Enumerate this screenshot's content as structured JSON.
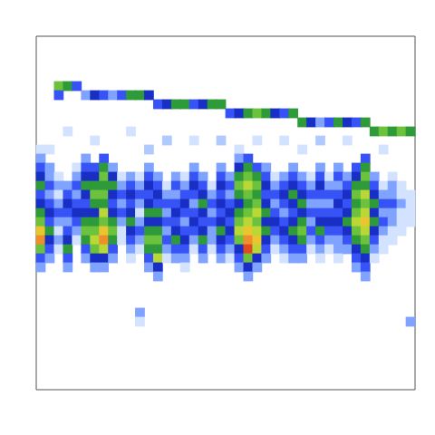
{
  "chart_data": {
    "type": "heatmap",
    "tick_labels": false,
    "grid": false,
    "xlim": [
      0,
      42
    ],
    "ylim": [
      0,
      39
    ],
    "zlim": [
      0,
      10
    ],
    "cells": [
      {
        "x": 2,
        "y": 5,
        "values": [
          6,
          3
        ]
      },
      {
        "x": 3,
        "y": 5,
        "values": [
          5
        ]
      },
      {
        "x": 4,
        "y": 5,
        "values": [
          3
        ]
      },
      {
        "x": 5,
        "y": 6,
        "values": [
          2
        ]
      },
      {
        "x": 6,
        "y": 6,
        "values": [
          4
        ]
      },
      {
        "x": 7,
        "y": 6,
        "values": [
          3
        ]
      },
      {
        "x": 8,
        "y": 6,
        "values": [
          2
        ]
      },
      {
        "x": 9,
        "y": 6,
        "values": [
          3
        ]
      },
      {
        "x": 10,
        "y": 6,
        "values": [
          5
        ]
      },
      {
        "x": 11,
        "y": 6,
        "values": [
          5
        ]
      },
      {
        "x": 12,
        "y": 6,
        "values": [
          4
        ]
      },
      {
        "x": 13,
        "y": 7,
        "values": [
          3
        ]
      },
      {
        "x": 14,
        "y": 7,
        "values": [
          4
        ]
      },
      {
        "x": 15,
        "y": 7,
        "values": [
          5
        ]
      },
      {
        "x": 16,
        "y": 7,
        "values": [
          5
        ]
      },
      {
        "x": 17,
        "y": 7,
        "values": [
          3
        ]
      },
      {
        "x": 18,
        "y": 7,
        "values": [
          4
        ]
      },
      {
        "x": 19,
        "y": 7,
        "values": [
          5
        ]
      },
      {
        "x": 20,
        "y": 7,
        "values": [
          5
        ]
      },
      {
        "x": 21,
        "y": 8,
        "values": [
          3
        ]
      },
      {
        "x": 22,
        "y": 8,
        "values": [
          4
        ]
      },
      {
        "x": 23,
        "y": 8,
        "values": [
          5
        ]
      },
      {
        "x": 24,
        "y": 8,
        "values": [
          6
        ]
      },
      {
        "x": 25,
        "y": 8,
        "values": [
          5
        ]
      },
      {
        "x": 26,
        "y": 8,
        "values": [
          4
        ]
      },
      {
        "x": 27,
        "y": 8,
        "values": [
          3
        ]
      },
      {
        "x": 28,
        "y": 8,
        "values": [
          5
        ]
      },
      {
        "x": 29,
        "y": 9,
        "values": [
          5
        ]
      },
      {
        "x": 30,
        "y": 9,
        "values": [
          4
        ]
      },
      {
        "x": 31,
        "y": 9,
        "values": [
          2
        ]
      },
      {
        "x": 32,
        "y": 9,
        "values": [
          3
        ]
      },
      {
        "x": 33,
        "y": 9,
        "values": [
          5
        ]
      },
      {
        "x": 34,
        "y": 9,
        "values": [
          4
        ]
      },
      {
        "x": 35,
        "y": 9,
        "values": [
          3
        ]
      },
      {
        "x": 36,
        "y": 9,
        "values": [
          5
        ]
      },
      {
        "x": 37,
        "y": 10,
        "values": [
          5
        ]
      },
      {
        "x": 38,
        "y": 10,
        "values": [
          6
        ]
      },
      {
        "x": 39,
        "y": 10,
        "values": [
          5
        ]
      },
      {
        "x": 40,
        "y": 10,
        "values": [
          6
        ]
      },
      {
        "x": 41,
        "y": 10,
        "values": [
          5
        ]
      },
      {
        "x": 0,
        "y": 12,
        "values": [
          1
        ]
      },
      {
        "x": 3,
        "y": 10,
        "values": [
          1
        ]
      },
      {
        "x": 6,
        "y": 11,
        "values": [
          1
        ]
      },
      {
        "x": 10,
        "y": 10,
        "values": [
          1
        ]
      },
      {
        "x": 14,
        "y": 11,
        "values": [
          1.5
        ]
      },
      {
        "x": 17,
        "y": 11,
        "values": [
          1
        ]
      },
      {
        "x": 20,
        "y": 11,
        "values": [
          1.5
        ]
      },
      {
        "x": 24,
        "y": 11,
        "values": [
          1
        ]
      },
      {
        "x": 27,
        "y": 11,
        "values": [
          1
        ]
      },
      {
        "x": 31,
        "y": 11,
        "values": [
          1.5
        ]
      },
      {
        "x": 34,
        "y": 11,
        "values": [
          1
        ]
      },
      {
        "x": 38,
        "y": 12,
        "values": [
          1
        ]
      },
      {
        "x": 1,
        "y": 12,
        "values": [
          1
        ]
      },
      {
        "x": 12,
        "y": 12,
        "values": [
          1.5
        ]
      },
      {
        "x": 22,
        "y": 12,
        "values": [
          1
        ]
      },
      {
        "x": 29,
        "y": 12,
        "values": [
          1
        ]
      },
      {
        "x": 0,
        "y": 13,
        "values": [
          2,
          3,
          4,
          5,
          3,
          4,
          5,
          6,
          8,
          9,
          6,
          3,
          2
        ]
      },
      {
        "x": 1,
        "y": 14,
        "values": [
          2,
          2,
          3,
          2,
          3,
          4,
          3,
          5,
          4,
          3,
          2
        ]
      },
      {
        "x": 2,
        "y": 15,
        "values": [
          1,
          2,
          1,
          2,
          3,
          2,
          1,
          2,
          1
        ]
      },
      {
        "x": 3,
        "y": 16,
        "values": [
          2,
          3,
          4,
          3,
          2,
          3,
          4,
          5,
          3,
          2
        ]
      },
      {
        "x": 4,
        "y": 14,
        "values": [
          1,
          2,
          3,
          2,
          3,
          4,
          3,
          2,
          1
        ]
      },
      {
        "x": 5,
        "y": 13,
        "values": [
          2,
          3,
          4,
          5,
          4,
          3,
          4,
          5,
          6,
          5,
          3,
          2
        ]
      },
      {
        "x": 6,
        "y": 14,
        "values": [
          3,
          4,
          5,
          6,
          5,
          4,
          5,
          6,
          7,
          6,
          4,
          2
        ]
      },
      {
        "x": 7,
        "y": 13,
        "values": [
          3,
          5,
          6,
          5,
          6,
          5,
          7,
          6,
          8,
          9,
          7,
          4,
          2
        ]
      },
      {
        "x": 8,
        "y": 14,
        "values": [
          2,
          4,
          5,
          4,
          3,
          4,
          5,
          6,
          5,
          3,
          2
        ]
      },
      {
        "x": 9,
        "y": 15,
        "values": [
          1,
          2,
          3,
          2,
          3,
          2,
          1,
          1
        ]
      },
      {
        "x": 10,
        "y": 15,
        "values": [
          2,
          3,
          4,
          3,
          4,
          5,
          4,
          3,
          2,
          1
        ]
      },
      {
        "x": 11,
        "y": 15,
        "values": [
          1,
          2,
          3,
          2,
          1,
          2,
          3,
          2,
          1
        ]
      },
      {
        "x": 12,
        "y": 14,
        "values": [
          2,
          3,
          4,
          3,
          4,
          5,
          4,
          5,
          6,
          5,
          3,
          2
        ]
      },
      {
        "x": 13,
        "y": 15,
        "values": [
          2,
          3,
          4,
          3,
          5,
          4,
          5,
          6,
          5,
          7,
          4,
          2
        ]
      },
      {
        "x": 14,
        "y": 16,
        "values": [
          1,
          2,
          3,
          2,
          3,
          2,
          3,
          2,
          1
        ]
      },
      {
        "x": 15,
        "y": 15,
        "values": [
          2,
          3,
          2,
          3,
          4,
          3,
          4,
          5,
          3,
          2
        ]
      },
      {
        "x": 16,
        "y": 15,
        "values": [
          1,
          2,
          3,
          4,
          3,
          2,
          3,
          4,
          3,
          2,
          1
        ]
      },
      {
        "x": 17,
        "y": 14,
        "values": [
          2,
          3,
          4,
          3,
          2,
          3,
          4,
          3,
          2,
          1
        ]
      },
      {
        "x": 18,
        "y": 15,
        "values": [
          2,
          3,
          4,
          5,
          4,
          3,
          4,
          5,
          3,
          2
        ]
      },
      {
        "x": 19,
        "y": 16,
        "values": [
          1,
          2,
          3,
          2,
          3,
          2,
          2,
          1
        ]
      },
      {
        "x": 20,
        "y": 14,
        "values": [
          2,
          3,
          4,
          3,
          4,
          3,
          4,
          5,
          4,
          3,
          2
        ]
      },
      {
        "x": 21,
        "y": 15,
        "values": [
          2,
          3,
          2,
          3,
          4,
          3,
          4,
          3,
          2,
          1
        ]
      },
      {
        "x": 22,
        "y": 13,
        "values": [
          2,
          4,
          5,
          6,
          5,
          4,
          5,
          6,
          7,
          6,
          4,
          3,
          2
        ]
      },
      {
        "x": 23,
        "y": 13,
        "values": [
          3,
          5,
          6,
          7,
          6,
          5,
          6,
          7,
          8,
          9,
          10,
          6,
          4,
          2
        ]
      },
      {
        "x": 24,
        "y": 14,
        "values": [
          3,
          5,
          6,
          5,
          6,
          7,
          6,
          7,
          8,
          7,
          4,
          2
        ]
      },
      {
        "x": 25,
        "y": 14,
        "values": [
          2,
          3,
          4,
          3,
          4,
          5,
          4,
          5,
          4,
          3,
          2
        ]
      },
      {
        "x": 26,
        "y": 15,
        "values": [
          1,
          2,
          3,
          2,
          3,
          4,
          3,
          2,
          1
        ]
      },
      {
        "x": 27,
        "y": 15,
        "values": [
          2,
          3,
          4,
          3,
          2,
          3,
          4,
          3,
          2,
          1
        ]
      },
      {
        "x": 28,
        "y": 14,
        "values": [
          2,
          3,
          4,
          5,
          4,
          3,
          4,
          5,
          4,
          3,
          2
        ]
      },
      {
        "x": 29,
        "y": 15,
        "values": [
          2,
          3,
          4,
          5,
          4,
          5,
          6,
          5,
          3,
          2
        ]
      },
      {
        "x": 30,
        "y": 15,
        "values": [
          1,
          2,
          3,
          2,
          3,
          2,
          3,
          2,
          1
        ]
      },
      {
        "x": 31,
        "y": 14,
        "values": [
          2,
          3,
          4,
          3,
          2,
          3,
          4,
          5,
          3,
          2,
          1
        ]
      },
      {
        "x": 32,
        "y": 15,
        "values": [
          1,
          2,
          3,
          2,
          3,
          4,
          3,
          2,
          1
        ]
      },
      {
        "x": 33,
        "y": 14,
        "values": [
          2,
          3,
          2,
          3,
          4,
          3,
          4,
          3,
          2,
          2,
          1
        ]
      },
      {
        "x": 34,
        "y": 15,
        "values": [
          2,
          3,
          4,
          3,
          4,
          5,
          4,
          3,
          2
        ]
      },
      {
        "x": 35,
        "y": 14,
        "values": [
          3,
          4,
          5,
          6,
          5,
          6,
          7,
          6,
          5,
          4,
          3,
          2
        ]
      },
      {
        "x": 36,
        "y": 13,
        "values": [
          3,
          5,
          6,
          5,
          7,
          6,
          7,
          8,
          7,
          6,
          5,
          4,
          3,
          2
        ]
      },
      {
        "x": 37,
        "y": 15,
        "values": [
          2,
          3,
          4,
          5,
          4,
          5,
          4,
          3,
          2,
          1
        ]
      },
      {
        "x": 38,
        "y": 16,
        "values": [
          1,
          2,
          3,
          2,
          3,
          2,
          1,
          1
        ]
      },
      {
        "x": 39,
        "y": 15,
        "values": [
          1,
          2,
          2,
          3,
          2,
          2,
          1,
          1
        ]
      },
      {
        "x": 40,
        "y": 16,
        "values": [
          1,
          1,
          2,
          1,
          1,
          1
        ]
      },
      {
        "x": 41,
        "y": 17,
        "values": [
          1,
          1,
          1,
          1
        ]
      },
      {
        "x": 11,
        "y": 30,
        "values": [
          2,
          1
        ]
      },
      {
        "x": 41,
        "y": 31,
        "values": [
          2
        ]
      }
    ]
  }
}
